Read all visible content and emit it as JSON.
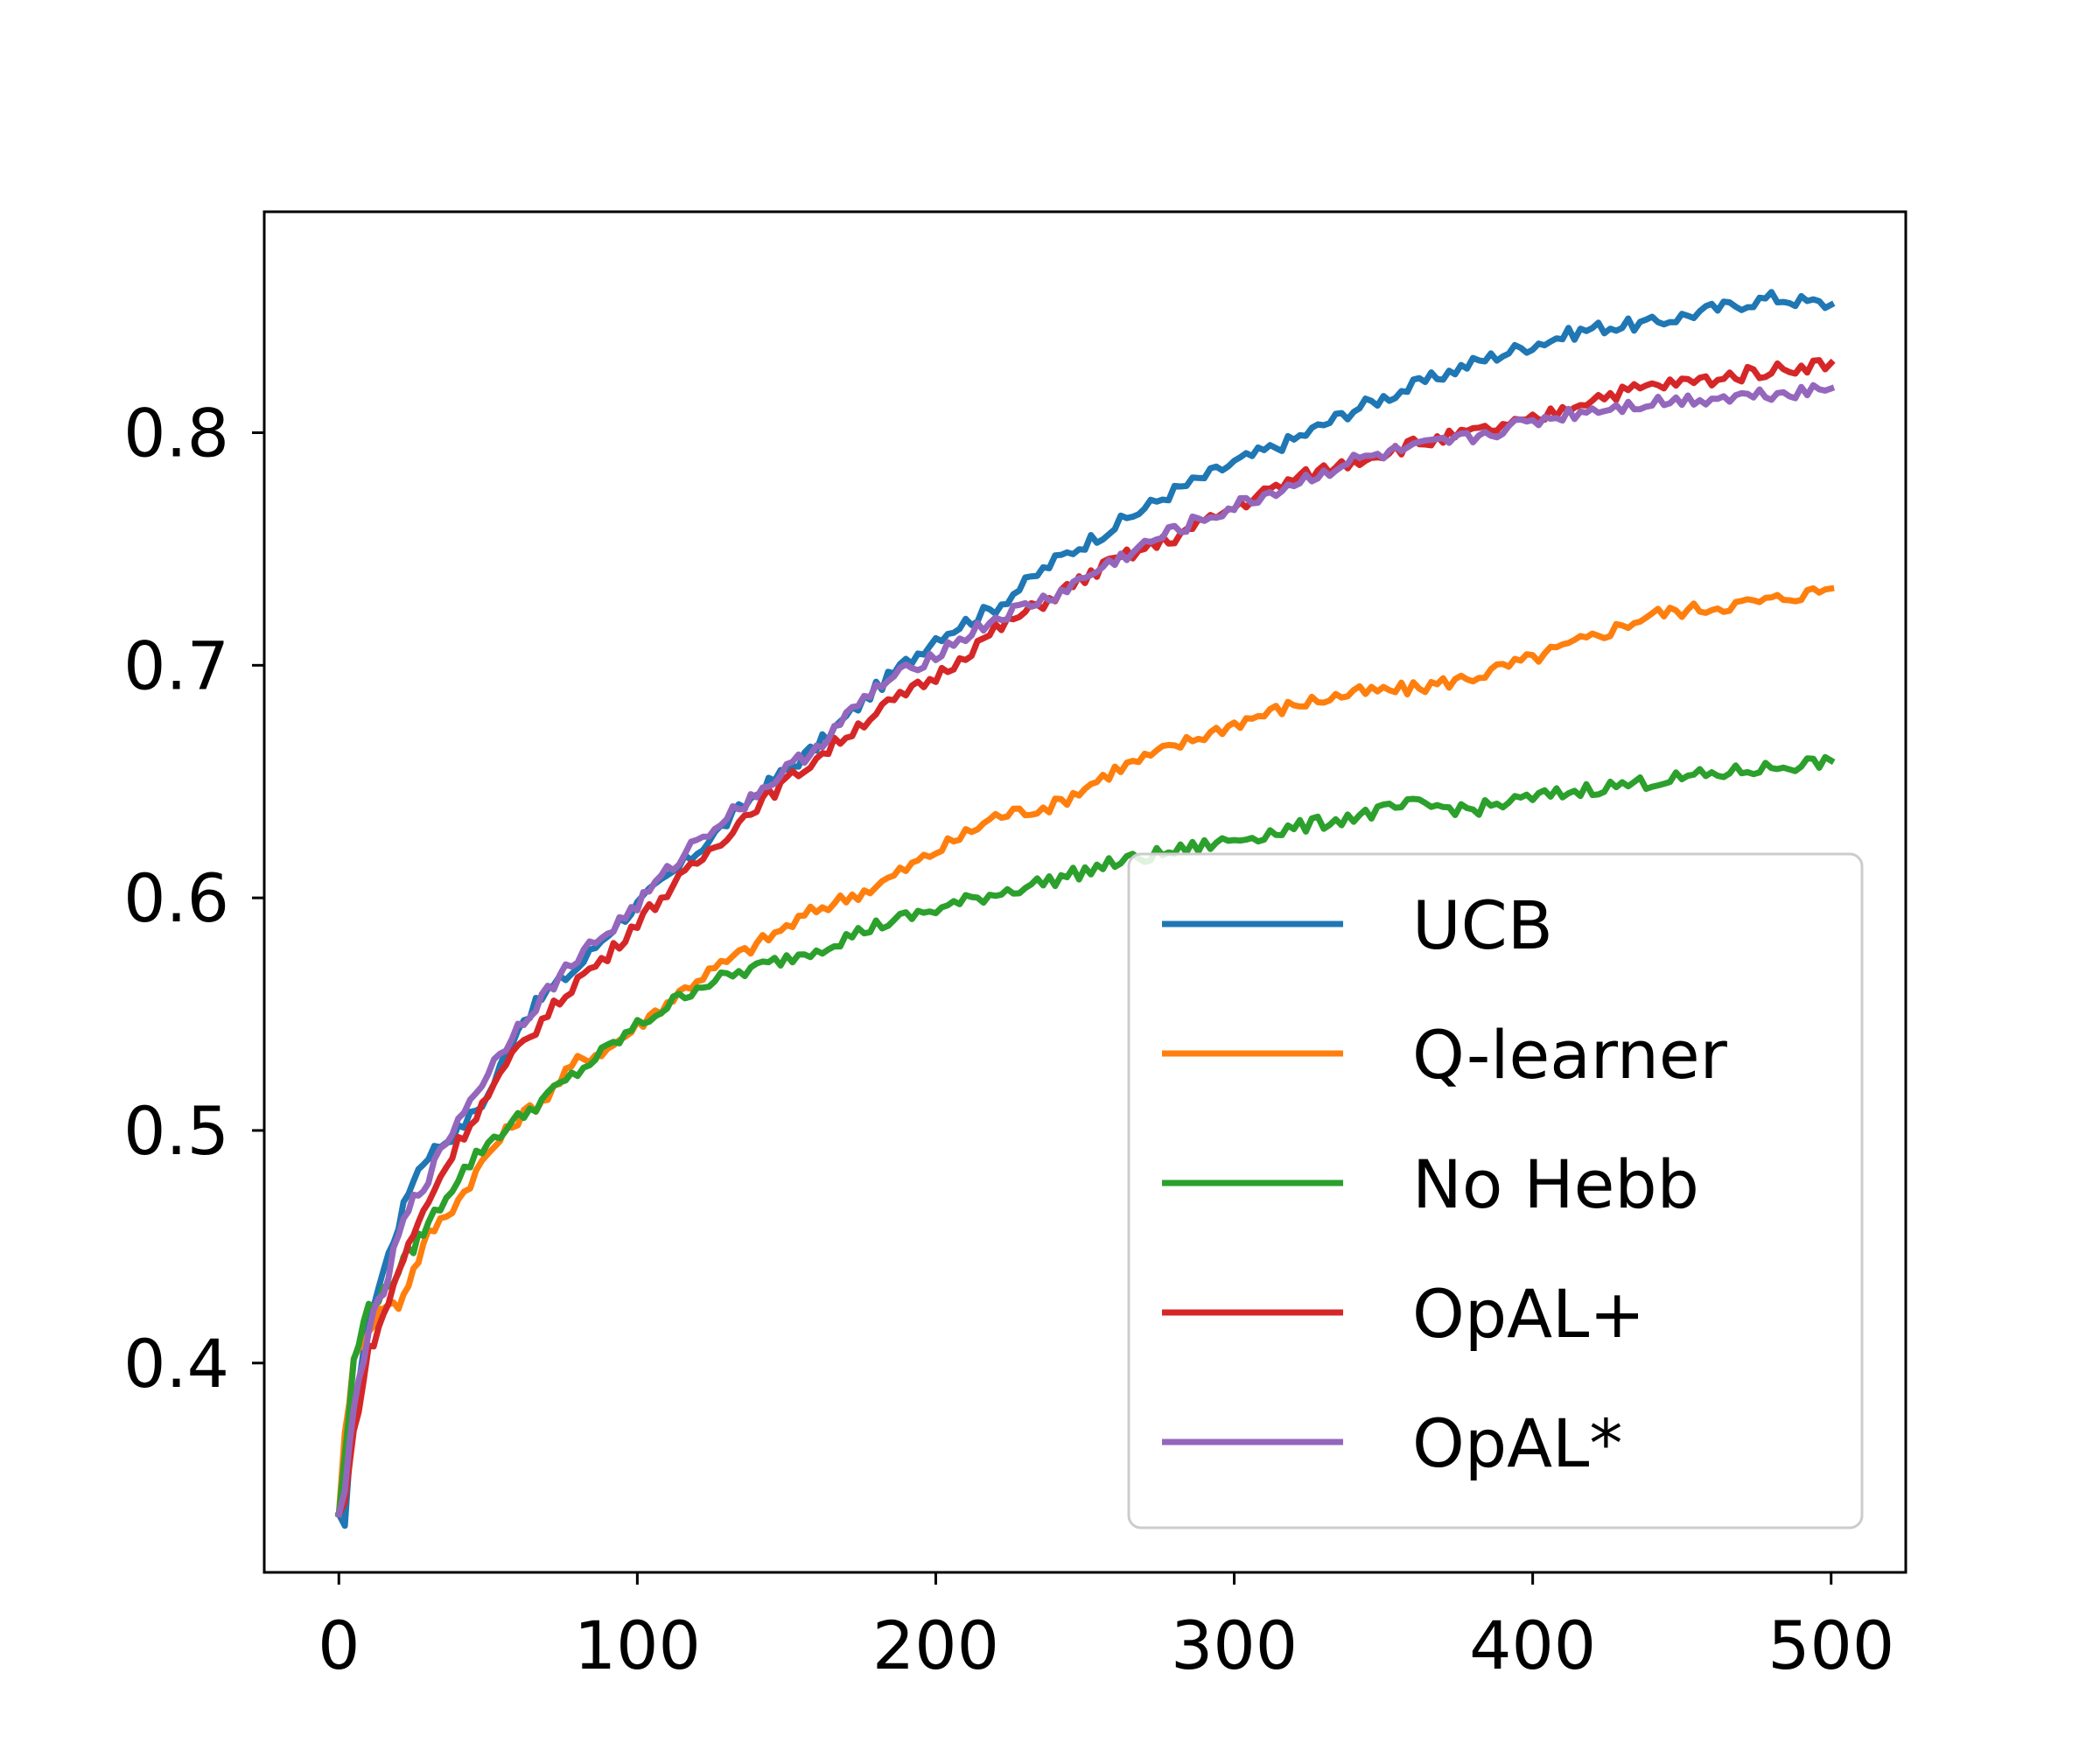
{
  "chart_data": {
    "type": "line",
    "title": "",
    "xlabel": "",
    "ylabel": "",
    "xlim": [
      -25,
      525
    ],
    "ylim": [
      0.31,
      0.895
    ],
    "x_ticks": [
      0,
      100,
      200,
      300,
      400,
      500
    ],
    "y_ticks": [
      0.4,
      0.5,
      0.6,
      0.7,
      0.8
    ],
    "x_tick_labels": [
      "0",
      "100",
      "200",
      "300",
      "400",
      "500"
    ],
    "y_tick_labels": [
      "0.4",
      "0.5",
      "0.6",
      "0.7",
      "0.8"
    ],
    "grid": false,
    "legend_position": "lower-right",
    "series": [
      {
        "name": "UCB",
        "color": "#1f77b4",
        "x": [
          0,
          2,
          5,
          10,
          15,
          20,
          25,
          30,
          40,
          50,
          60,
          70,
          80,
          90,
          100,
          120,
          140,
          160,
          180,
          200,
          220,
          240,
          260,
          280,
          300,
          320,
          340,
          360,
          380,
          400,
          420,
          440,
          460,
          480,
          500
        ],
        "y": [
          0.335,
          0.33,
          0.38,
          0.42,
          0.44,
          0.46,
          0.48,
          0.49,
          0.5,
          0.515,
          0.545,
          0.56,
          0.57,
          0.585,
          0.597,
          0.62,
          0.645,
          0.665,
          0.69,
          0.712,
          0.725,
          0.745,
          0.76,
          0.775,
          0.787,
          0.797,
          0.81,
          0.82,
          0.83,
          0.838,
          0.845,
          0.847,
          0.853,
          0.858,
          0.855
        ]
      },
      {
        "name": "Q-learner",
        "color": "#ff7f0e",
        "x": [
          0,
          2,
          5,
          10,
          15,
          20,
          25,
          30,
          40,
          50,
          60,
          70,
          80,
          90,
          100,
          120,
          140,
          160,
          180,
          200,
          220,
          240,
          260,
          280,
          300,
          320,
          340,
          360,
          380,
          400,
          420,
          440,
          460,
          480,
          500
        ],
        "y": [
          0.335,
          0.37,
          0.4,
          0.415,
          0.425,
          0.425,
          0.44,
          0.455,
          0.47,
          0.49,
          0.505,
          0.515,
          0.53,
          0.535,
          0.545,
          0.565,
          0.58,
          0.595,
          0.605,
          0.62,
          0.635,
          0.64,
          0.655,
          0.665,
          0.675,
          0.683,
          0.688,
          0.69,
          0.695,
          0.703,
          0.712,
          0.722,
          0.725,
          0.728,
          0.733
        ]
      },
      {
        "name": "No Hebb",
        "color": "#2ca02c",
        "x": [
          0,
          2,
          5,
          10,
          15,
          20,
          25,
          30,
          40,
          50,
          60,
          70,
          80,
          90,
          100,
          120,
          140,
          160,
          180,
          200,
          220,
          240,
          260,
          280,
          300,
          320,
          340,
          360,
          380,
          400,
          420,
          440,
          460,
          480,
          500
        ],
        "y": [
          0.335,
          0.36,
          0.4,
          0.425,
          0.43,
          0.44,
          0.45,
          0.46,
          0.48,
          0.495,
          0.505,
          0.515,
          0.525,
          0.535,
          0.545,
          0.562,
          0.57,
          0.578,
          0.588,
          0.595,
          0.602,
          0.608,
          0.615,
          0.62,
          0.625,
          0.63,
          0.635,
          0.64,
          0.638,
          0.643,
          0.647,
          0.65,
          0.653,
          0.656,
          0.659
        ]
      },
      {
        "name": "OpAL+",
        "color": "#d62728",
        "x": [
          0,
          2,
          5,
          10,
          15,
          20,
          25,
          30,
          40,
          50,
          60,
          70,
          80,
          90,
          100,
          120,
          140,
          160,
          180,
          200,
          220,
          240,
          260,
          280,
          300,
          320,
          340,
          360,
          380,
          400,
          420,
          440,
          460,
          480,
          500
        ],
        "y": [
          0.335,
          0.34,
          0.37,
          0.405,
          0.42,
          0.44,
          0.455,
          0.47,
          0.495,
          0.515,
          0.535,
          0.55,
          0.565,
          0.575,
          0.59,
          0.615,
          0.64,
          0.66,
          0.68,
          0.695,
          0.715,
          0.73,
          0.745,
          0.755,
          0.768,
          0.78,
          0.788,
          0.795,
          0.8,
          0.805,
          0.815,
          0.82,
          0.823,
          0.827,
          0.83
        ]
      },
      {
        "name": "OpAL*",
        "color": "#9467bd",
        "x": [
          0,
          2,
          5,
          10,
          15,
          20,
          25,
          30,
          40,
          50,
          60,
          70,
          80,
          90,
          100,
          120,
          140,
          160,
          180,
          200,
          220,
          240,
          260,
          280,
          300,
          320,
          340,
          360,
          380,
          400,
          420,
          440,
          460,
          480,
          500
        ],
        "y": [
          0.335,
          0.345,
          0.38,
          0.415,
          0.43,
          0.455,
          0.47,
          0.48,
          0.505,
          0.525,
          0.545,
          0.56,
          0.575,
          0.585,
          0.597,
          0.625,
          0.645,
          0.665,
          0.69,
          0.705,
          0.72,
          0.73,
          0.745,
          0.758,
          0.768,
          0.778,
          0.788,
          0.793,
          0.798,
          0.805,
          0.81,
          0.813,
          0.815,
          0.817,
          0.819
        ]
      }
    ]
  }
}
